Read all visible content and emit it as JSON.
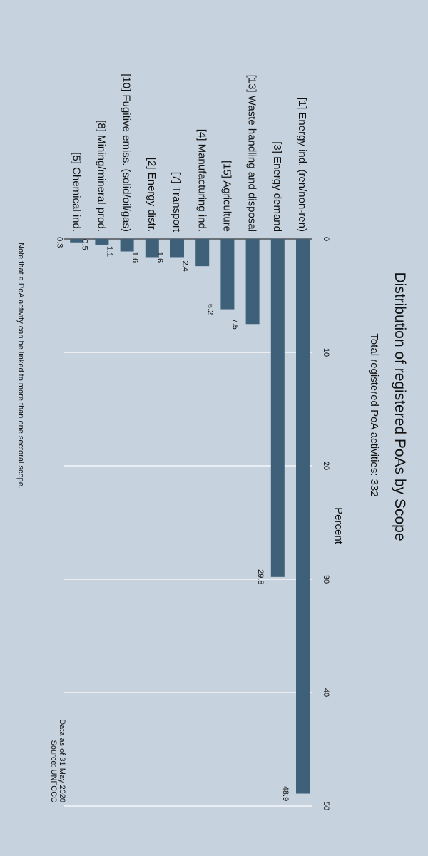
{
  "chart_data": {
    "type": "bar",
    "orientation": "horizontal",
    "title": "Distribution of registered PoAs by Scope",
    "subtitle": "Total registered PoA activities: 332",
    "xlabel": "Percent",
    "ylabel": "",
    "xlim": [
      0,
      50
    ],
    "ticks": [
      "0",
      "10",
      "20",
      "30",
      "40",
      "50"
    ],
    "grid": true,
    "bar_color": "#3e6079",
    "categories": [
      "[1] Energy ind. (ren/non-ren)",
      "[3] Energy demand",
      "[13] Waste handling and disposal",
      "[15] Agriculture",
      "[4] Manufacturing ind.",
      "[7] Transport",
      "[2] Energy distr.",
      "[10] Fugitive emiss. (solid/oil/gas)",
      "[8] Mining/mineral prod.",
      "[5] Chemical ind."
    ],
    "values": [
      48.9,
      29.8,
      7.5,
      6.2,
      2.4,
      1.6,
      1.6,
      1.1,
      0.5,
      0.3
    ],
    "value_labels": [
      "48.9",
      "29.8",
      "7.5",
      "6.2",
      "2.4",
      "1.6",
      "1.6",
      "1.1",
      "0.5",
      "0.3"
    ],
    "note": "Note that a PoA activity can be linked to more than one sectoral scope.",
    "data_date": "Data as of 31 May 2020",
    "source": "Source: UNFCCC"
  }
}
